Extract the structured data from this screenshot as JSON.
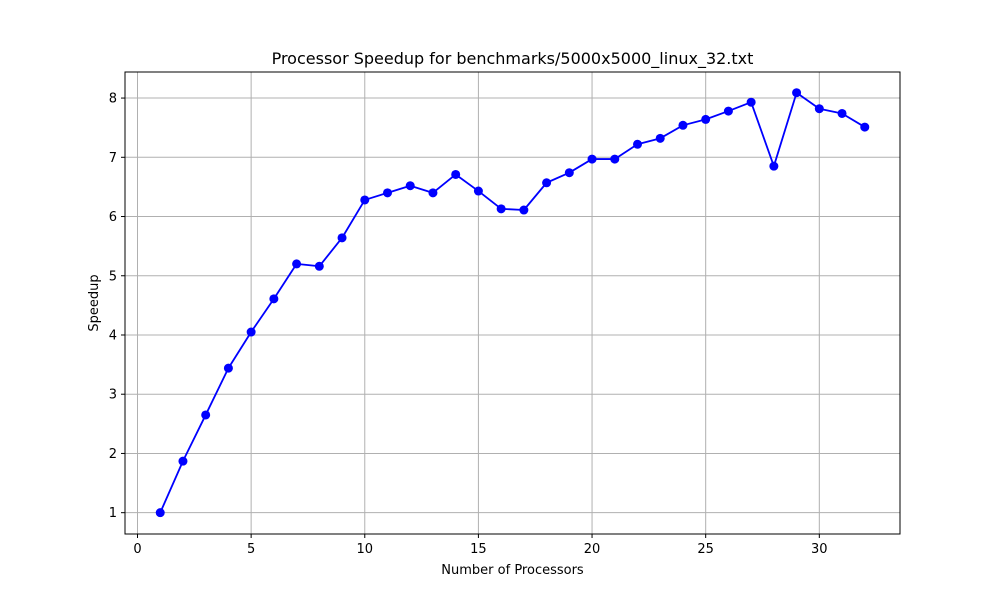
{
  "chart_data": {
    "type": "line",
    "title": "Processor Speedup for benchmarks/5000x5000_linux_32.txt",
    "xlabel": "Number of Processors",
    "ylabel": "Speedup",
    "xlim": [
      -0.55,
      33.55
    ],
    "ylim": [
      0.64,
      8.44
    ],
    "xticks": [
      0,
      5,
      10,
      15,
      20,
      25,
      30
    ],
    "yticks": [
      1,
      2,
      3,
      4,
      5,
      6,
      7,
      8
    ],
    "grid": true,
    "series": [
      {
        "color": "#0000ff",
        "marker": "circle",
        "x": [
          1,
          2,
          3,
          4,
          5,
          6,
          7,
          8,
          9,
          10,
          11,
          12,
          13,
          14,
          15,
          16,
          17,
          18,
          19,
          20,
          21,
          22,
          23,
          24,
          25,
          26,
          27,
          28,
          29,
          30,
          31,
          32
        ],
        "y": [
          1.0,
          1.87,
          2.65,
          3.44,
          4.05,
          4.61,
          5.2,
          5.16,
          5.64,
          6.28,
          6.4,
          6.52,
          6.4,
          6.71,
          6.43,
          6.13,
          6.11,
          6.57,
          6.74,
          6.97,
          6.97,
          7.22,
          7.32,
          7.54,
          7.64,
          7.78,
          7.93,
          6.85,
          8.09,
          7.82,
          7.74,
          7.51
        ]
      }
    ]
  }
}
